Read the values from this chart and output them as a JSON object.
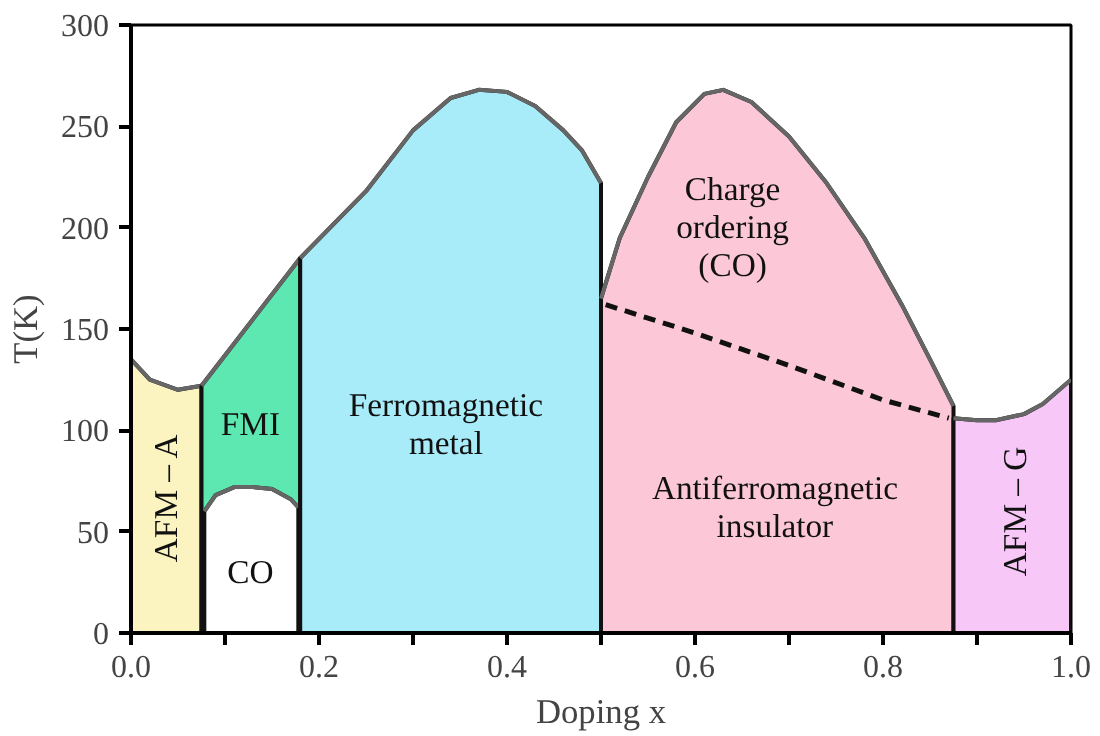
{
  "chart_data": {
    "type": "area",
    "xlabel": "Doping x",
    "ylabel": "T(K)",
    "xlim": [
      0,
      1
    ],
    "ylim": [
      0,
      300
    ],
    "xticks": [
      {
        "value": 0,
        "label": "0.0"
      },
      {
        "value": 0.1,
        "label": null
      },
      {
        "value": 0.2,
        "label": "0.2"
      },
      {
        "value": 0.3,
        "label": null
      },
      {
        "value": 0.4,
        "label": "0.4"
      },
      {
        "value": 0.5,
        "label": null
      },
      {
        "value": 0.6,
        "label": "0.6"
      },
      {
        "value": 0.7,
        "label": null
      },
      {
        "value": 0.8,
        "label": "0.8"
      },
      {
        "value": 0.9,
        "label": null
      },
      {
        "value": 1,
        "label": "1.0"
      }
    ],
    "yticks": [
      0,
      50,
      100,
      150,
      200,
      250,
      300
    ],
    "grid": false,
    "series": [
      {
        "color": "#fbf3c0",
        "x": [
          0,
          0.02,
          0.05,
          0.075
        ],
        "values": [
          135,
          125,
          120,
          122
        ]
      },
      {
        "color": "#5ce8b0",
        "x": [
          0.075,
          0.18
        ],
        "values": [
          122,
          185
        ]
      },
      {
        "color": "#ffffff",
        "x": [
          0.078,
          0.09,
          0.11,
          0.13,
          0.15,
          0.17,
          0.178
        ],
        "values": [
          60,
          68,
          72,
          72,
          71,
          66,
          62
        ]
      },
      {
        "color": "#a8ecfa",
        "x": [
          0.18,
          0.25,
          0.3,
          0.34,
          0.37,
          0.4,
          0.43,
          0.46,
          0.48,
          0.5
        ],
        "values": [
          185,
          218,
          248,
          264,
          268,
          267,
          260,
          248,
          238,
          222
        ]
      },
      {
        "color": "#fcc8d8",
        "x": [
          0.5,
          0.52,
          0.55,
          0.58,
          0.61,
          0.63,
          0.66,
          0.7,
          0.74,
          0.78,
          0.82,
          0.85,
          0.875
        ],
        "values": [
          165,
          195,
          225,
          252,
          266,
          268,
          262,
          245,
          222,
          195,
          162,
          135,
          112
        ]
      },
      {
        "color": "#f7c8f7",
        "x": [
          0.875,
          0.9,
          0.92,
          0.95,
          0.97,
          1.0
        ],
        "values": [
          106,
          105,
          105,
          108,
          113,
          125
        ]
      },
      {
        "type": "line",
        "line_style": "dashed",
        "color": "#111111",
        "x": [
          0.505,
          0.6,
          0.7,
          0.8,
          0.87
        ],
        "values": [
          162,
          148,
          132,
          115,
          106
        ]
      }
    ],
    "annotations": [
      "AFM – A",
      "FMI",
      "CO",
      "Ferromagnetic\nmetal",
      "Charge\nordering\n(CO)",
      "Antiferromagnetic\ninsulator",
      "AFM – G"
    ]
  }
}
